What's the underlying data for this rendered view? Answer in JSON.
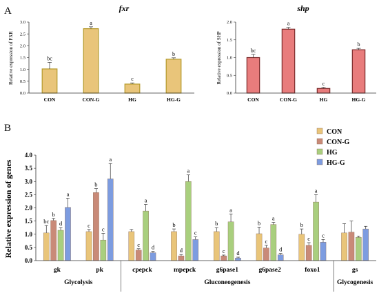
{
  "panels": {
    "a": {
      "label": "A",
      "charts": [
        {
          "title": "fxr",
          "ylabel": "Relative expression of FXR",
          "ylim": [
            0,
            3.0
          ],
          "yticks": [
            0,
            0.5,
            1.0,
            1.5,
            2.0,
            2.5,
            3.0
          ],
          "ytick_labels": [
            "0.0",
            "0.5",
            "1.0",
            "1.5",
            "2.0",
            "2.5",
            "3.0"
          ],
          "categories": [
            "CON",
            "CON-G",
            "HG",
            "HG-G"
          ],
          "values": [
            1.02,
            2.72,
            0.38,
            1.43
          ],
          "errors": [
            0.28,
            0.08,
            0.05,
            0.06
          ],
          "letters": [
            "bc",
            "a",
            "c",
            "b"
          ],
          "fill_color": "#e9c57a",
          "edge_color": "#b49a2a"
        },
        {
          "title": "shp",
          "ylabel": "Relative expression of SHP",
          "ylim": [
            0,
            2.0
          ],
          "yticks": [
            0,
            0.5,
            1.0,
            1.5,
            2.0
          ],
          "ytick_labels": [
            "0.0",
            "0.5",
            "1.0",
            "1.5",
            "2.0"
          ],
          "categories": [
            "CON",
            "CON-G",
            "HG",
            "HG-G"
          ],
          "values": [
            1.0,
            1.8,
            0.13,
            1.22
          ],
          "errors": [
            0.09,
            0.05,
            0.03,
            0.04
          ],
          "letters": [
            "bc",
            "a",
            "c",
            "b"
          ],
          "fill_color": "#e87c7c",
          "edge_color": "#7a2a2a"
        }
      ]
    },
    "b": {
      "label": "B",
      "ylabel": "Relative expression of genes",
      "ylim": [
        0,
        4.0
      ],
      "yticks": [
        0,
        0.5,
        1.0,
        1.5,
        2.0,
        2.5,
        3.0,
        3.5,
        4.0
      ],
      "ytick_labels": [
        "0.0",
        "0.5",
        "1.0",
        "1.5",
        "2.0",
        "2.5",
        "3.0",
        "3.5",
        "4.0"
      ],
      "legend": [
        "CON",
        "CON-G",
        "HG",
        "HG-G"
      ],
      "legend_position": "top-right",
      "series_colors": [
        "#e9c57a",
        "#c98a78",
        "#a9cf7e",
        "#7d9ce0"
      ],
      "genes": [
        "gk",
        "pk",
        "cpepck",
        "mpepck",
        "g6pase1",
        "g6pase2",
        "foxo1",
        "gs"
      ],
      "groups": [
        {
          "label": "Glycolysis",
          "genes": [
            "gk",
            "pk"
          ]
        },
        {
          "label": "Gluconeogenesis",
          "genes": [
            "cpepck",
            "mpepck",
            "g6pase1",
            "g6pase2",
            "foxo1"
          ]
        },
        {
          "label": "Glycogenesis",
          "genes": [
            "gs"
          ]
        }
      ]
    }
  },
  "chart_data": [
    {
      "type": "bar",
      "title": "fxr",
      "ylabel": "Relative expression of FXR",
      "categories": [
        "CON",
        "CON-G",
        "HG",
        "HG-G"
      ],
      "values": [
        1.02,
        2.72,
        0.38,
        1.43
      ],
      "errors": [
        0.28,
        0.08,
        0.05,
        0.06
      ],
      "ylim": [
        0,
        3.0
      ]
    },
    {
      "type": "bar",
      "title": "shp",
      "ylabel": "Relative expression of SHP",
      "categories": [
        "CON",
        "CON-G",
        "HG",
        "HG-G"
      ],
      "values": [
        1.0,
        1.8,
        0.13,
        1.22
      ],
      "errors": [
        0.09,
        0.05,
        0.03,
        0.04
      ],
      "ylim": [
        0,
        2.0
      ]
    },
    {
      "type": "bar",
      "ylabel": "Relative expression of genes",
      "categories": [
        "gk",
        "pk",
        "cpepck",
        "mpepck",
        "g6pase1",
        "g6pase2",
        "foxo1",
        "gs"
      ],
      "ylim": [
        0,
        4.0
      ],
      "series": [
        {
          "name": "CON",
          "values": [
            1.05,
            1.1,
            1.1,
            1.1,
            1.1,
            1.02,
            1.0,
            1.05
          ],
          "errors": [
            0.28,
            0.08,
            0.08,
            0.1,
            0.15,
            0.25,
            0.2,
            0.35
          ],
          "letters": [
            "bc",
            "c",
            "",
            "b",
            "b",
            "b",
            "b",
            ""
          ]
        },
        {
          "name": "CON-G",
          "values": [
            1.52,
            2.58,
            0.4,
            0.18,
            0.18,
            0.48,
            0.58,
            1.08
          ],
          "errors": [
            0.08,
            0.15,
            0.05,
            0.05,
            0.03,
            0.1,
            0.1,
            0.42
          ],
          "letters": [
            "b",
            "b",
            "c",
            "d",
            "c",
            "c",
            "c",
            ""
          ]
        },
        {
          "name": "HG",
          "values": [
            1.15,
            0.78,
            1.88,
            3.0,
            1.47,
            1.37,
            2.22,
            0.88
          ],
          "errors": [
            0.1,
            0.25,
            0.25,
            0.25,
            0.3,
            0.08,
            0.28,
            0.05
          ],
          "letters": [
            "d",
            "c",
            "a",
            "a",
            "a",
            "a",
            "a",
            ""
          ]
        },
        {
          "name": "HG-G",
          "values": [
            2.02,
            3.1,
            0.3,
            0.8,
            0.1,
            0.22,
            0.7,
            1.2
          ],
          "errors": [
            0.35,
            0.58,
            0.05,
            0.1,
            0.03,
            0.05,
            0.1,
            0.1
          ],
          "letters": [
            "a",
            "a",
            "d",
            "c",
            "d",
            "d",
            "c",
            ""
          ]
        }
      ],
      "group_labels": [
        "Glycolysis",
        "Gluconeogenesis",
        "Glycogenesis"
      ],
      "legend": "top-right"
    }
  ]
}
